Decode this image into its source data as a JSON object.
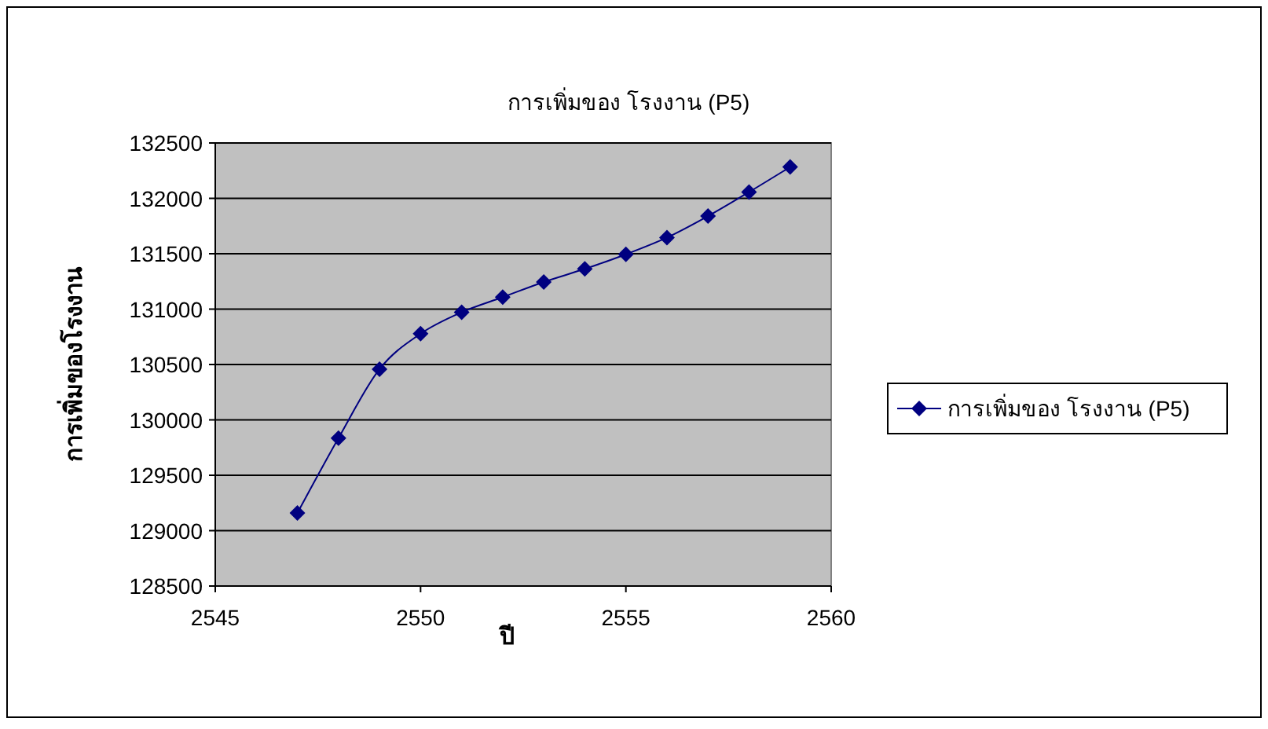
{
  "chart_data": {
    "type": "line",
    "title": "การเพิ่มของ โรงงาน (P5)",
    "xlabel": "ปี",
    "ylabel": "การเพิ่มของโรงงาน",
    "x": [
      2547,
      2548,
      2549,
      2550,
      2551,
      2552,
      2553,
      2554,
      2555,
      2556,
      2557,
      2558,
      2559
    ],
    "series": [
      {
        "name": "การเพิ่มของ โรงงาน (P5)",
        "color": "#000080",
        "values": [
          129160,
          129835,
          130458,
          130778,
          130972,
          131108,
          131245,
          131363,
          131495,
          131646,
          131840,
          132057,
          132283
        ]
      }
    ],
    "xlim": [
      2545,
      2560
    ],
    "xticks": [
      2545,
      2550,
      2555,
      2560
    ],
    "ylim": [
      128500,
      132500
    ],
    "yticks": [
      128500,
      129000,
      129500,
      130000,
      130500,
      131000,
      131500,
      132000,
      132500
    ],
    "grid": "y",
    "legend": "right",
    "marker": "diamond",
    "line_style": "solid"
  }
}
